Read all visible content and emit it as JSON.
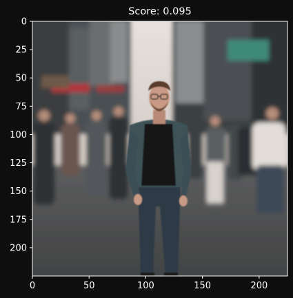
{
  "figure": {
    "title": "Score: 0.095",
    "background_color": "#0e0e0e",
    "axis_color": "#ffffff"
  },
  "image": {
    "kind": "blurred-city-street-photo",
    "width": 225,
    "height": 225,
    "palette": {
      "sky": "#d9d2cc",
      "building_left": "#4a4f52",
      "building_right": "#3b4043",
      "street": "#4f5152",
      "crowd": "#2f3336",
      "jacket": "#3d5258",
      "shirt": "#141416",
      "jeans": "#2e3b46",
      "skin": "#c99a85",
      "hair": "#5a3e2c",
      "awning_red": "#b2353a",
      "sign_teal": "#3f8a7a"
    }
  },
  "axes": {
    "xlim": [
      0,
      225
    ],
    "ylim": [
      225,
      0
    ],
    "x_ticks": [
      0,
      50,
      100,
      150,
      200
    ],
    "y_ticks": [
      0,
      25,
      50,
      75,
      100,
      125,
      150,
      175,
      200
    ]
  }
}
